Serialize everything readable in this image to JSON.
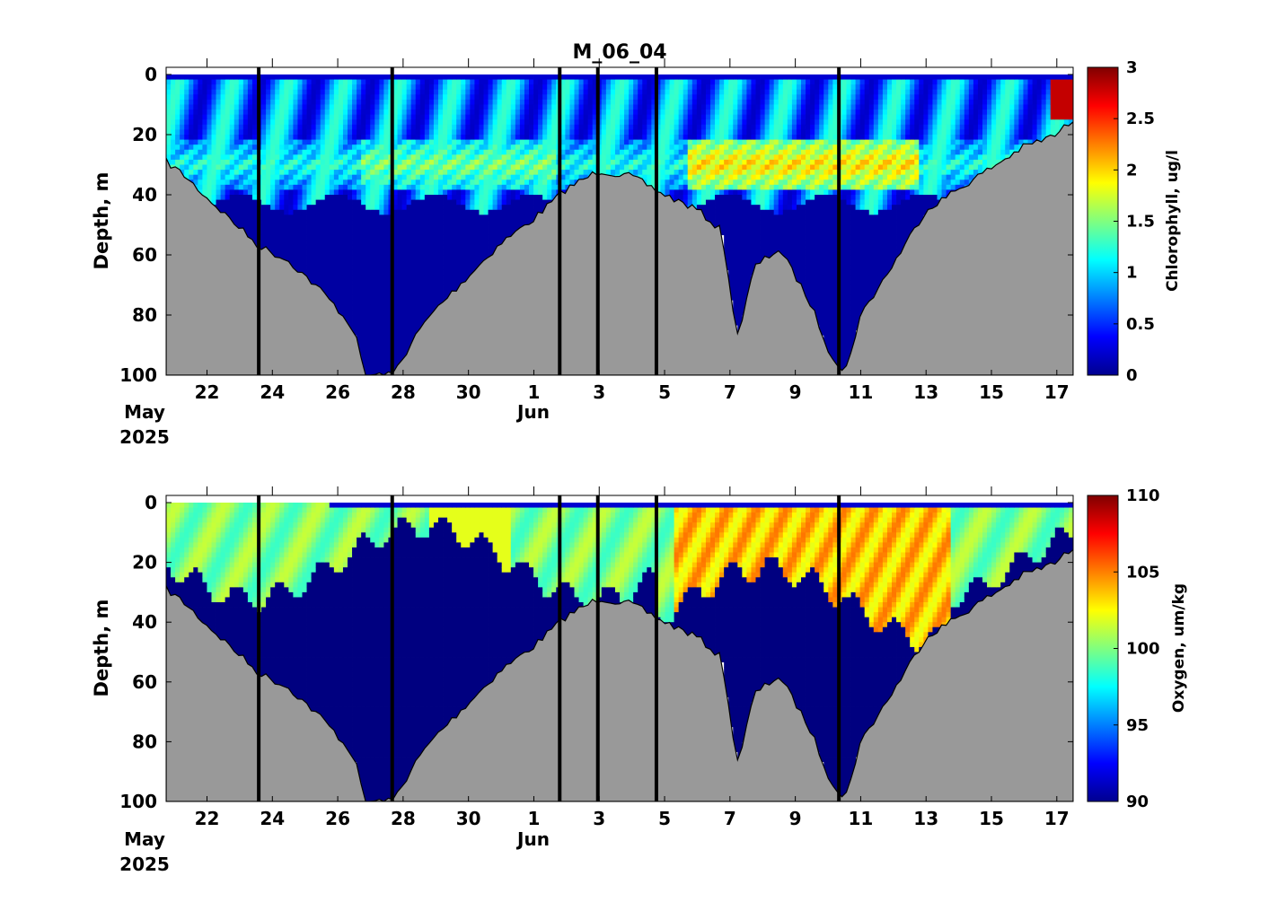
{
  "title": "M_06_04",
  "colors": {
    "bathymetry": "#999999",
    "deep_water": "#00008f",
    "cast_lines": "#000000",
    "colormap": "jet"
  },
  "x_axis": {
    "tick_labels": [
      "22",
      "24",
      "26",
      "28",
      "30",
      "1",
      "3",
      "5",
      "7",
      "9",
      "11",
      "13",
      "15",
      "17"
    ],
    "month_labels": [
      "May",
      "Jun"
    ],
    "year_label": "2025"
  },
  "chart_data": [
    {
      "type": "heatmap",
      "title": "M_06_04",
      "ylabel": "Depth, m",
      "yticks": [
        "0",
        "20",
        "40",
        "60",
        "80",
        "100"
      ],
      "ylim": [
        100,
        0
      ],
      "xlim_days": [
        "2025-05-20T18:00",
        "2025-06-17T12:00"
      ],
      "colorbar": {
        "label": "Chlorophyll, ug/l",
        "range": [
          0,
          3
        ],
        "ticks": [
          "0",
          "0.5",
          "1",
          "1.5",
          "2",
          "2.5",
          "3"
        ]
      },
      "cast_times": [
        "2025-05-23T14:00",
        "2025-05-27T16:00",
        "2025-06-01T19:00",
        "2025-06-02T23:00",
        "2025-06-04T18:00",
        "2025-06-10T08:00"
      ],
      "bottom_depth_profile": {
        "time": [
          "2025-05-20T18:00",
          "2025-05-21T06:00",
          "2025-05-22T00:00",
          "2025-05-23T00:00",
          "2025-05-23T14:00",
          "2025-05-24T12:00",
          "2025-05-25T12:00",
          "2025-05-26T00:00",
          "2025-05-26T12:00",
          "2025-05-26T20:00",
          "2025-05-27T16:00",
          "2025-05-28T12:00",
          "2025-05-29T00:00",
          "2025-05-30T00:00",
          "2025-05-31T00:00",
          "2025-06-01T00:00",
          "2025-06-02T00:00",
          "2025-06-03T00:00",
          "2025-06-04T00:00",
          "2025-06-05T00:00",
          "2025-06-06T00:00",
          "2025-06-06T18:00",
          "2025-06-07T00:00",
          "2025-06-07T06:00",
          "2025-06-07T18:00",
          "2025-06-08T12:00",
          "2025-06-09T00:00",
          "2025-06-09T12:00",
          "2025-06-10T00:00",
          "2025-06-10T12:00",
          "2025-06-11T00:00",
          "2025-06-12T00:00",
          "2025-06-13T00:00",
          "2025-06-14T00:00",
          "2025-06-15T00:00",
          "2025-06-16T00:00",
          "2025-06-17T00:00",
          "2025-06-17T12:00"
        ],
        "depth": [
          29,
          33,
          41,
          51,
          57,
          62,
          72,
          78,
          85,
          100,
          100,
          85,
          78,
          67,
          56,
          48,
          38,
          32,
          34,
          40,
          45,
          52,
          72,
          87,
          64,
          58,
          67,
          77,
          91,
          100,
          80,
          63,
          45,
          38,
          31,
          24,
          20,
          15
        ]
      },
      "features": {
        "mixed_layer_chlorophyll": [
          0.4,
          1.2
        ],
        "subsurface_maximum_depth_m": [
          22,
          38
        ],
        "subsurface_maximum_chl": [
          1.6,
          2.3
        ],
        "surface_bloom_jun17_chl": 2.8,
        "deep_water_chl": 0.1
      }
    },
    {
      "type": "heatmap",
      "ylabel": "Depth, m",
      "yticks": [
        "0",
        "20",
        "40",
        "60",
        "80",
        "100"
      ],
      "ylim": [
        100,
        0
      ],
      "xlim_days": [
        "2025-05-20T18:00",
        "2025-06-17T12:00"
      ],
      "colorbar": {
        "label": "Oxygen, um/kg",
        "range": [
          90,
          110
        ],
        "ticks": [
          "90",
          "95",
          "100",
          "105",
          "110"
        ]
      },
      "cast_times": [
        "2025-05-23T14:00",
        "2025-05-27T16:00",
        "2025-06-01T19:00",
        "2025-06-02T23:00",
        "2025-06-04T18:00",
        "2025-06-10T08:00"
      ],
      "features": {
        "surface_layer_oxygen": [
          97,
          102
        ],
        "warm_period_oxygen_jun5_to_jun13": [
          102,
          106
        ],
        "oxycline_depth_m": [
          20,
          45
        ],
        "deep_water_oxygen": 90
      }
    }
  ]
}
